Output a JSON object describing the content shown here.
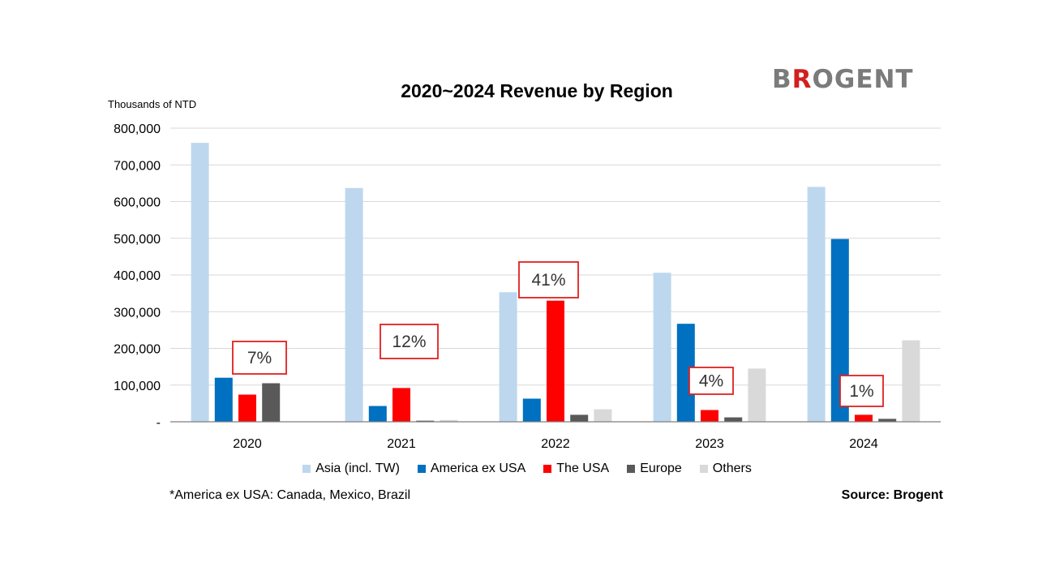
{
  "header": {
    "logo_text": "BROGENT",
    "title": "2020~2024 Revenue by Region",
    "unit_label": "Thousands of NTD"
  },
  "footer": {
    "footnote": "*America ex USA: Canada, Mexico, Brazil",
    "source": "Source: Brogent"
  },
  "chart_data": {
    "type": "bar",
    "title": "2020~2024 Revenue by Region",
    "ylabel": "Thousands of NTD",
    "xlabel": "",
    "categories": [
      "2020",
      "2021",
      "2022",
      "2023",
      "2024"
    ],
    "ylim": [
      0,
      800000
    ],
    "yticks": [
      0,
      100000,
      200000,
      300000,
      400000,
      500000,
      600000,
      700000,
      800000
    ],
    "ytick_labels": [
      "-",
      "100,000",
      "200,000",
      "300,000",
      "400,000",
      "500,000",
      "600,000",
      "700,000",
      "800,000"
    ],
    "grid": true,
    "legend_position": "bottom",
    "series": [
      {
        "name": "Asia (incl. TW)",
        "color": "#bdd7ee",
        "values": [
          760000,
          637000,
          353000,
          406000,
          640000
        ]
      },
      {
        "name": "America ex USA",
        "color": "#0070c0",
        "values": [
          120000,
          43000,
          63000,
          267000,
          498000
        ]
      },
      {
        "name": "The USA",
        "color": "#ff0000",
        "values": [
          74000,
          92000,
          330000,
          32000,
          19000
        ]
      },
      {
        "name": "Europe",
        "color": "#595959",
        "values": [
          105000,
          3000,
          19000,
          12000,
          8000
        ]
      },
      {
        "name": "Others",
        "color": "#d9d9d9",
        "values": [
          0,
          5000,
          34000,
          145000,
          222000
        ]
      }
    ],
    "annotations": [
      {
        "category": "2020",
        "text": "7%"
      },
      {
        "category": "2021",
        "text": "12%"
      },
      {
        "category": "2022",
        "text": "41%"
      },
      {
        "category": "2023",
        "text": "4%"
      },
      {
        "category": "2024",
        "text": "1%"
      }
    ]
  }
}
